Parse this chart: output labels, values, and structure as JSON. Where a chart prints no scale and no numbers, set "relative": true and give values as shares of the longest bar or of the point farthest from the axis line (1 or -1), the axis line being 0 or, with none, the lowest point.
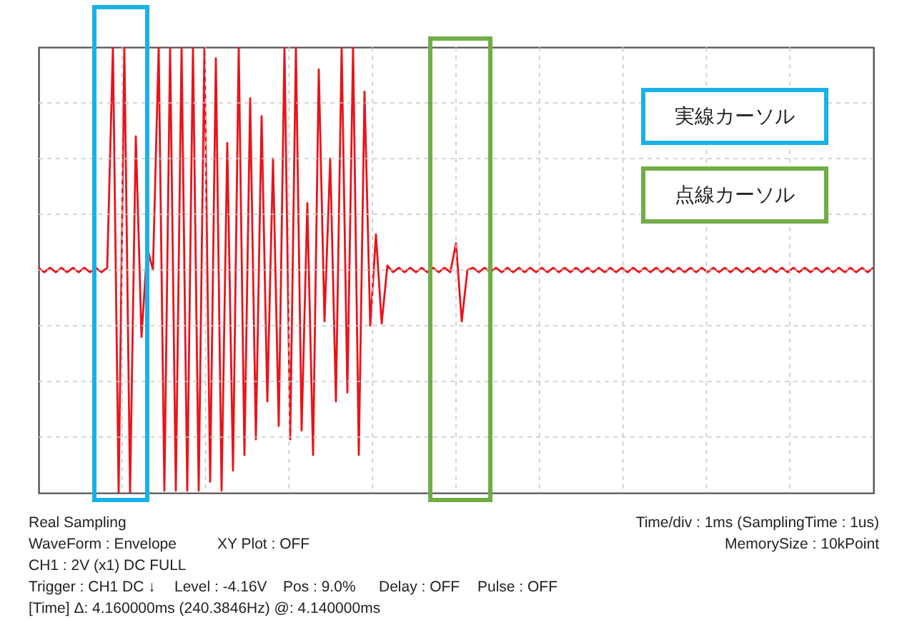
{
  "chart_data": {
    "type": "line",
    "relative": true,
    "tick_labels": false,
    "grid": true,
    "marker": "none",
    "line_style": "solid",
    "categories": [
      null,
      null,
      null,
      null,
      null,
      null,
      null,
      null,
      null,
      null,
      null,
      null,
      null,
      null,
      null,
      null,
      null,
      null,
      null,
      null,
      null,
      null,
      null,
      null,
      null,
      null,
      null,
      null,
      null,
      null,
      null,
      null,
      null,
      null,
      null,
      null,
      null,
      null,
      null,
      null,
      null,
      null,
      null,
      null,
      null,
      null,
      null,
      null,
      null,
      null,
      null,
      null,
      null,
      null,
      null,
      null,
      null,
      null,
      null,
      null,
      null,
      null,
      null,
      null,
      null,
      null,
      null,
      null,
      null,
      null,
      null,
      null,
      null,
      null,
      null,
      null,
      null,
      null,
      null,
      null,
      null,
      null,
      null,
      null,
      null,
      null,
      null,
      null,
      null,
      null,
      null,
      null,
      null,
      null,
      null,
      null,
      null,
      null,
      null,
      null,
      null,
      null,
      null,
      null,
      null,
      null,
      null,
      null,
      null,
      null,
      null,
      null,
      null,
      null,
      null,
      null,
      null,
      null,
      null,
      null,
      null,
      null,
      null,
      null,
      null,
      null,
      null,
      null,
      null,
      null,
      null,
      null,
      null,
      null,
      null,
      null,
      null,
      null,
      null,
      null,
      null,
      null,
      null,
      null,
      null,
      null,
      null
    ],
    "series": [
      {
        "color": "#e8141b",
        "values": [
          0.01,
          -0.01,
          0.01,
          -0.01,
          0.01,
          -0.01,
          0.01,
          -0.01,
          0.01,
          -0.01,
          0.01,
          -0.01,
          0.01,
          1,
          -1,
          1,
          -1,
          0.6,
          -0.3,
          0.1,
          0,
          1,
          -0.99,
          1,
          -0.99,
          1,
          -0.99,
          1,
          -0.99,
          1,
          -0.95,
          0.95,
          -0.99,
          0.57,
          -0.9,
          1,
          -0.83,
          0.77,
          -0.76,
          0.69,
          -0.59,
          0.5,
          -0.7,
          1,
          -0.76,
          1,
          -0.72,
          0.3,
          -0.83,
          0.9,
          -0.23,
          0.5,
          -0.59,
          1,
          -0.55,
          1,
          -0.83,
          0.8,
          -0.25,
          0.16,
          -0.24,
          0.02,
          -0.01,
          0.01,
          -0.01,
          0.01,
          -0.01,
          0.01,
          -0.01,
          0.01,
          -0.01,
          0.01,
          -0.01,
          0.12,
          -0.23,
          0,
          0.01,
          -0.01,
          0.01,
          -0.01,
          0.01,
          -0.01,
          0.01,
          -0.01,
          0.01,
          -0.01,
          0.01,
          -0.01,
          0.01,
          -0.01,
          0.01,
          -0.01,
          0.01,
          -0.01,
          0.01,
          -0.01,
          0.01,
          -0.01,
          0.01,
          -0.01,
          0.01,
          -0.01,
          0.01,
          -0.01,
          0.01,
          -0.01,
          0.01,
          -0.01,
          0.01,
          -0.01,
          0.01,
          -0.01,
          0.01,
          -0.01,
          0.01,
          -0.01,
          0.01,
          -0.01,
          0.01,
          -0.01,
          0.01,
          -0.01,
          0.01,
          -0.01,
          0.01,
          -0.01,
          0.01,
          -0.01,
          0.01,
          -0.01,
          0.01,
          -0.01,
          0.01,
          -0.01,
          0.01,
          -0.01,
          0.01,
          -0.01,
          0.01,
          -0.01,
          0.01,
          -0.01,
          0.01,
          -0.01,
          0.01,
          -0.01,
          0.01
        ]
      }
    ],
    "annotations": [
      "実線カーソル",
      "点線カーソル",
      "Real Sampling",
      "Time/div : 1ms (SamplingTime : 1us)",
      "WaveForm : Envelope",
      "XY Plot : OFF",
      "MemorySize : 10kPoint",
      "CH1 : 2V (x1)  DC  FULL",
      "Trigger : CH1  DC ↓",
      "Level : -4.16V",
      "Pos : 9.0%",
      "Delay : OFF",
      "Pulse : OFF",
      "[Time]  Δ: 4.160000ms (240.3846Hz)  @: 4.140000ms"
    ]
  }
}
